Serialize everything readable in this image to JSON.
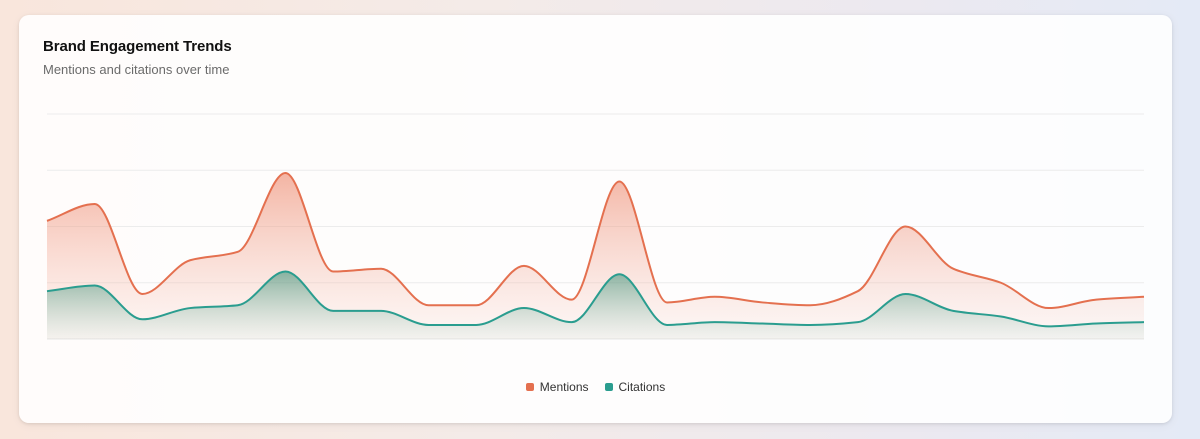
{
  "card": {
    "title": "Brand Engagement Trends",
    "subtitle": "Mentions and citations over time"
  },
  "colors": {
    "mentions": "#e4704f",
    "citations": "#2a9d8f",
    "grid": "#ececec"
  },
  "chart_data": {
    "type": "area",
    "title": "Brand Engagement Trends",
    "subtitle": "Mentions and citations over time",
    "xlabel": "",
    "ylabel": "",
    "ylim": [
      0,
      80
    ],
    "grid": true,
    "legend_position": "bottom",
    "x": [
      1,
      2,
      3,
      4,
      5,
      6,
      7,
      8,
      9,
      10,
      11,
      12,
      13,
      14,
      15,
      16,
      17,
      18,
      19,
      20,
      21,
      22,
      23,
      24
    ],
    "series": [
      {
        "name": "Mentions",
        "color": "#e4704f",
        "values": [
          42,
          48,
          16,
          28,
          31,
          59,
          24,
          25,
          12,
          12,
          26,
          14,
          56,
          13,
          15,
          13,
          12,
          17,
          40,
          25,
          20,
          11,
          14,
          15
        ]
      },
      {
        "name": "Citations",
        "color": "#2a9d8f",
        "values": [
          17,
          19,
          7,
          11,
          12,
          24,
          10,
          10,
          5,
          5,
          11,
          6,
          23,
          5,
          6,
          5.5,
          5,
          6,
          16,
          10,
          8,
          4.5,
          5.5,
          6
        ]
      }
    ]
  }
}
